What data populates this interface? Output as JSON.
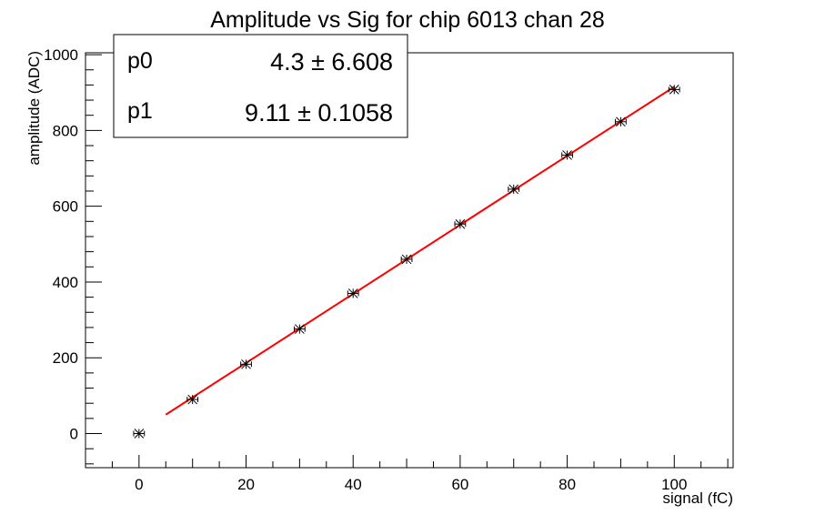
{
  "chart_data": {
    "type": "scatter",
    "title": "Amplitude vs Sig for chip 6013 chan 28",
    "xlabel": "signal (fC)",
    "ylabel": "amplitude (ADC)",
    "xlim": [
      -10,
      111
    ],
    "ylim": [
      -90,
      1005
    ],
    "x_ticks": [
      0,
      20,
      40,
      60,
      80,
      100
    ],
    "y_ticks": [
      0,
      200,
      400,
      600,
      800,
      1000
    ],
    "grid": false,
    "series": [
      {
        "marker": "star",
        "color": "#000000",
        "x": [
          0,
          10,
          20,
          30,
          40,
          50,
          60,
          70,
          80,
          90,
          100
        ],
        "y": [
          0,
          90,
          183,
          276,
          370,
          460,
          553,
          645,
          735,
          823,
          908
        ],
        "x_err": 1
      }
    ],
    "fit": {
      "color": "#ff0000",
      "x_range": [
        5,
        100
      ],
      "p0": 4.3,
      "p1": 9.11
    },
    "stats_box": {
      "position": "top-left",
      "rows": [
        {
          "name": "p0",
          "value": "4.3 ± 6.608"
        },
        {
          "name": "p1",
          "value": "9.11 ± 0.1058"
        }
      ]
    }
  }
}
